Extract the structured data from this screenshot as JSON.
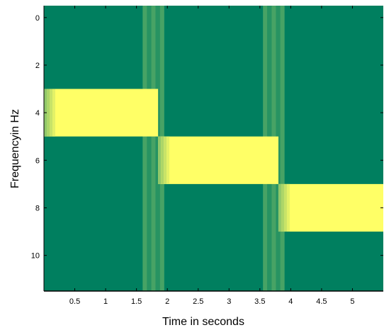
{
  "chart_data": {
    "type": "heatmap",
    "title": "",
    "xlabel": "Time in seconds",
    "ylabel": "Frequencyin Hz",
    "xlim": [
      0,
      5.5
    ],
    "ylim": [
      -0.5,
      11.5
    ],
    "y_reversed": true,
    "xticks": [
      0.5,
      1,
      1.5,
      2,
      2.5,
      3,
      3.5,
      4,
      4.5,
      5
    ],
    "xtick_labels": [
      "0.5",
      "1",
      "1.5",
      "2",
      "2.5",
      "3",
      "3.5",
      "4",
      "4.5",
      "5"
    ],
    "yticks": [
      0,
      2,
      4,
      6,
      8,
      10
    ],
    "ytick_labels": [
      "0",
      "2",
      "4",
      "6",
      "8",
      "10"
    ],
    "colors": {
      "low": "#007f5f",
      "mid": "#7fbf6a",
      "high": "#ffff66"
    },
    "background_level": 0,
    "segments": [
      {
        "x_range": [
          0,
          1.85
        ],
        "y_range": [
          3,
          5
        ],
        "level": 1
      },
      {
        "x_range": [
          1.85,
          3.8
        ],
        "y_range": [
          5,
          7
        ],
        "level": 1
      },
      {
        "x_range": [
          3.8,
          5.5
        ],
        "y_range": [
          7,
          9
        ],
        "level": 1
      }
    ],
    "transitions": [
      {
        "x_range": [
          1.6,
          1.95
        ],
        "level": 0.35
      },
      {
        "x_range": [
          3.55,
          3.9
        ],
        "level": 0.35
      }
    ]
  }
}
